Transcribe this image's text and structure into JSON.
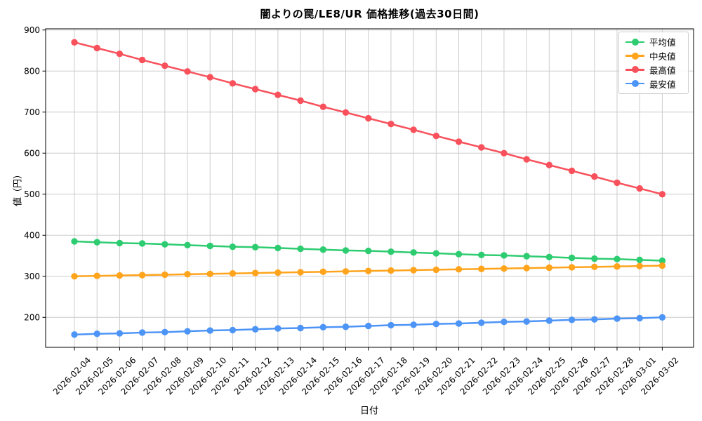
{
  "chart_data": {
    "type": "line",
    "title": "闇よりの罠/LE8/UR  価格推移(過去30日間)",
    "xlabel": "日付",
    "ylabel": "値（円）",
    "x": [
      "2026-02-04",
      "2026-02-05",
      "2026-02-06",
      "2026-02-07",
      "2026-02-08",
      "2026-02-09",
      "2026-02-10",
      "2026-02-11",
      "2026-02-12",
      "2026-02-13",
      "2026-02-14",
      "2026-02-15",
      "2026-02-16",
      "2026-02-17",
      "2026-02-18",
      "2026-02-19",
      "2026-02-20",
      "2026-02-21",
      "2026-02-22",
      "2026-02-23",
      "2026-02-24",
      "2026-02-25",
      "2026-02-26",
      "2026-02-27",
      "2026-02-28",
      "2026-03-01",
      "2026-03-02"
    ],
    "series": [
      {
        "key": "average",
        "name": "平均値",
        "color": "#2ecc71",
        "values": [
          385,
          383,
          381,
          380,
          378,
          376,
          374,
          372,
          371,
          369,
          367,
          365,
          363,
          362,
          360,
          358,
          356,
          354,
          352,
          351,
          349,
          347,
          345,
          343,
          342,
          340,
          338
        ]
      },
      {
        "key": "median",
        "name": "中央値",
        "color": "#ffa41c",
        "values": [
          300,
          301,
          302,
          303,
          304,
          305,
          306,
          307,
          308,
          309,
          310,
          311,
          312,
          313,
          314,
          315,
          316,
          317,
          318,
          319,
          320,
          321,
          322,
          323,
          324,
          325,
          326
        ]
      },
      {
        "key": "max",
        "name": "最高値",
        "color": "#f8515c",
        "values": [
          870,
          856,
          842,
          827,
          813,
          799,
          785,
          770,
          756,
          742,
          728,
          713,
          699,
          685,
          671,
          657,
          642,
          628,
          614,
          600,
          585,
          571,
          557,
          543,
          528,
          514,
          500
        ]
      },
      {
        "key": "min",
        "name": "最安値",
        "color": "#4d94f7",
        "values": [
          158,
          160,
          161,
          163,
          164,
          166,
          168,
          169,
          171,
          173,
          174,
          176,
          177,
          179,
          181,
          182,
          184,
          185,
          187,
          189,
          190,
          192,
          194,
          195,
          197,
          198,
          200
        ]
      }
    ],
    "ylim": [
      127,
      903
    ],
    "yticks": [
      200,
      300,
      400,
      500,
      600,
      700,
      800,
      900
    ],
    "grid": true,
    "grid_color": "#cccccc",
    "legend_position": "upper right"
  }
}
